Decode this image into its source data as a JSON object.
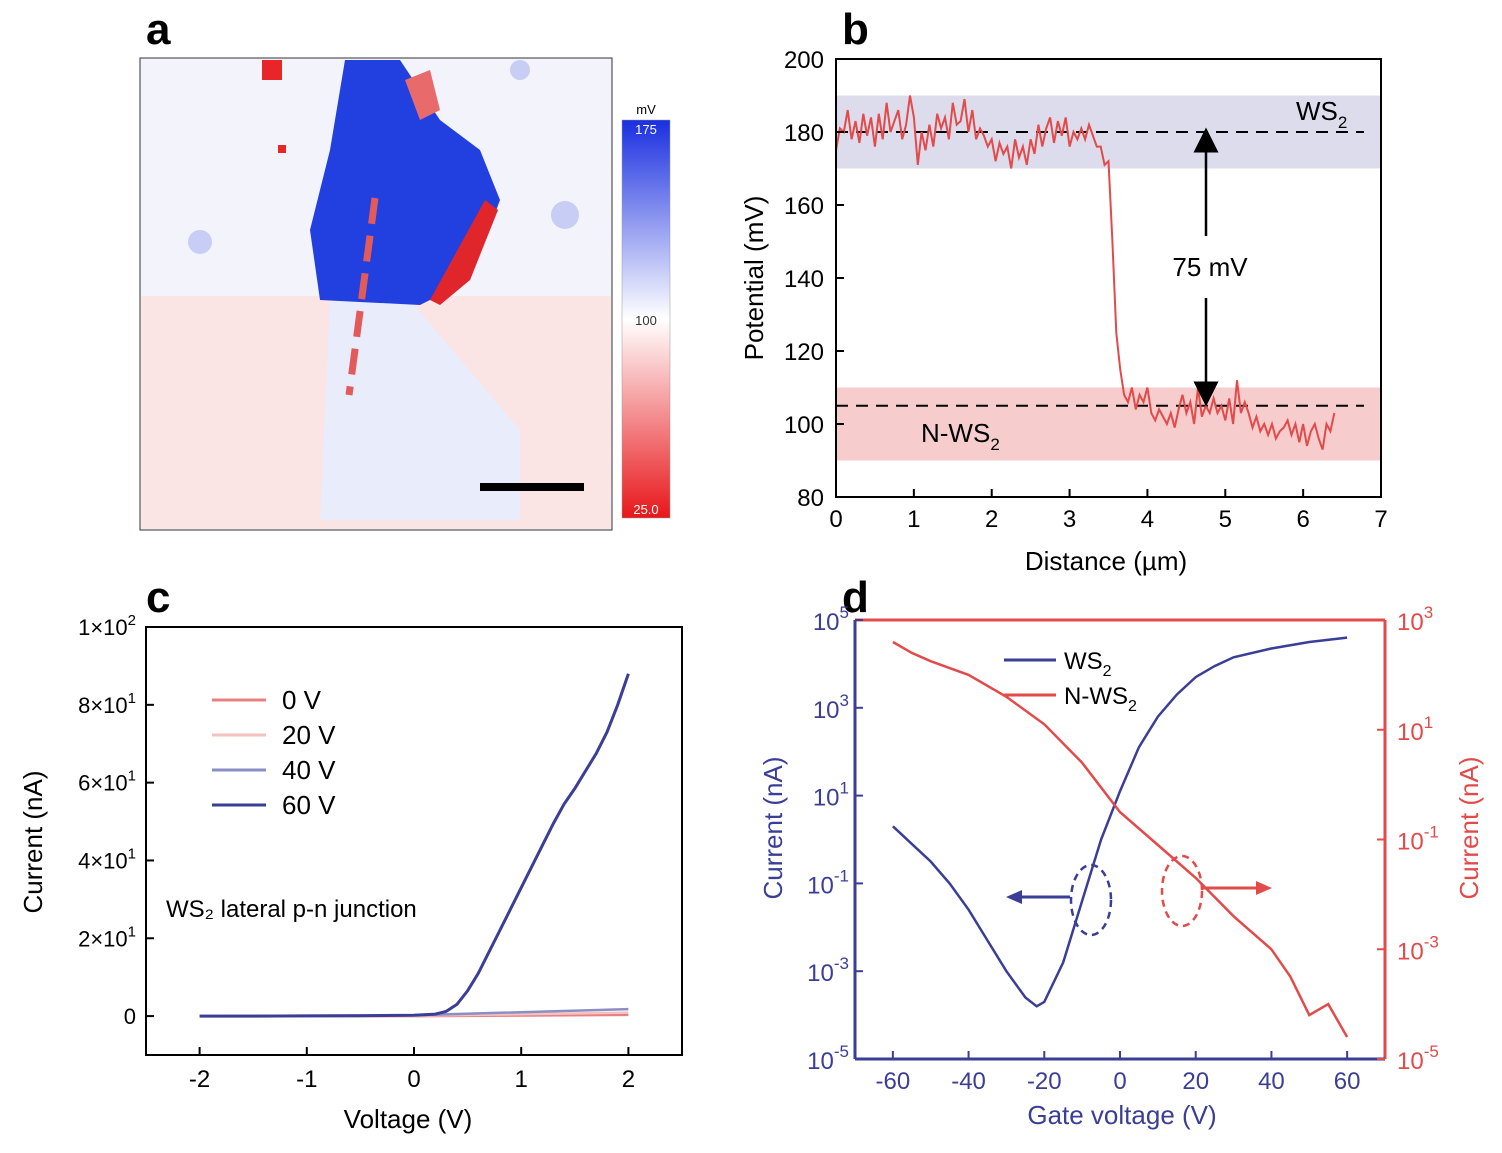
{
  "figure": {
    "panel_letters": [
      "a",
      "b",
      "c",
      "d"
    ]
  },
  "colors": {
    "blue": "#3a3e96",
    "red": "#e34a4a",
    "map_blue": "#1f3fe0",
    "map_red": "#e8262a",
    "band_blue": "#dcdcec",
    "band_red": "#f6cccc"
  },
  "chart_data": [
    {
      "panel": "a",
      "type": "heatmap",
      "colorbar": {
        "unit": "mV",
        "max_label": "175",
        "mid_label": "100",
        "min_label": "25.0"
      },
      "description_icons": [
        "scale-bar",
        "line-profile"
      ]
    },
    {
      "panel": "b",
      "type": "line",
      "xlabel": "Distance (µm)",
      "ylabel": "Potential (mV)",
      "xlim": [
        0,
        7
      ],
      "ylim": [
        80,
        200
      ],
      "xticks": [
        "0",
        "1",
        "2",
        "3",
        "4",
        "5",
        "6",
        "7"
      ],
      "yticks": [
        "80",
        "100",
        "120",
        "140",
        "160",
        "180",
        "200"
      ],
      "bands": [
        {
          "label": "WS",
          "sub": "2",
          "y0": 170,
          "y1": 190
        },
        {
          "label": "N-WS",
          "sub": "2",
          "y0": 90,
          "y1": 110
        }
      ],
      "reference_lines": [
        180,
        105
      ],
      "annotation": "75 mV",
      "series": [
        {
          "x": [
            0.0,
            0.05,
            0.1,
            0.15,
            0.2,
            0.25,
            0.3,
            0.35,
            0.4,
            0.45,
            0.5,
            0.55,
            0.6,
            0.65,
            0.7,
            0.75,
            0.8,
            0.85,
            0.9,
            0.95,
            1.0,
            1.05,
            1.1,
            1.15,
            1.2,
            1.25,
            1.3,
            1.35,
            1.4,
            1.45,
            1.5,
            1.55,
            1.6,
            1.65,
            1.7,
            1.75,
            1.8,
            1.85,
            1.9,
            1.95,
            2.0,
            2.05,
            2.1,
            2.15,
            2.2,
            2.25,
            2.3,
            2.35,
            2.4,
            2.45,
            2.5,
            2.55,
            2.6,
            2.65,
            2.7,
            2.75,
            2.8,
            2.85,
            2.9,
            2.95,
            3.0,
            3.05,
            3.1,
            3.15,
            3.2,
            3.25,
            3.3,
            3.35,
            3.4,
            3.45,
            3.5,
            3.55,
            3.6,
            3.65,
            3.7,
            3.75,
            3.8,
            3.85,
            3.9,
            3.95,
            4.0,
            4.05,
            4.1,
            4.15,
            4.2,
            4.25,
            4.3,
            4.35,
            4.4,
            4.45,
            4.5,
            4.55,
            4.6,
            4.65,
            4.7,
            4.75,
            4.8,
            4.85,
            4.9,
            4.95,
            5.0,
            5.05,
            5.1,
            5.15,
            5.2,
            5.25,
            5.3,
            5.35,
            5.4,
            5.45,
            5.5,
            5.55,
            5.6,
            5.65,
            5.7,
            5.75,
            5.8,
            5.85,
            5.9,
            5.95,
            6.0,
            6.05,
            6.1,
            6.15,
            6.2,
            6.25,
            6.3,
            6.35,
            6.4
          ],
          "y": [
            175,
            181,
            180,
            186,
            178,
            183,
            177,
            185,
            179,
            184,
            176,
            185,
            178,
            188,
            180,
            183,
            186,
            178,
            182,
            190,
            184,
            171,
            180,
            175,
            182,
            176,
            185,
            181,
            184,
            178,
            188,
            182,
            183,
            189,
            180,
            186,
            178,
            181,
            179,
            176,
            178,
            172,
            177,
            174,
            176,
            170,
            178,
            173,
            176,
            171,
            178,
            174,
            182,
            176,
            181,
            184,
            177,
            183,
            179,
            184,
            176,
            180,
            178,
            181,
            178,
            182,
            179,
            176,
            176,
            171,
            172,
            150,
            125,
            115,
            108,
            106,
            110,
            104,
            108,
            106,
            110,
            103,
            101,
            104,
            102,
            100,
            103,
            99,
            104,
            108,
            103,
            106,
            100,
            110,
            102,
            105,
            103,
            107,
            103,
            105,
            101,
            107,
            100,
            112,
            103,
            106,
            103,
            99,
            102,
            98,
            100,
            97,
            100,
            96,
            98,
            99,
            101,
            97,
            100,
            95,
            100,
            94,
            98,
            100,
            96,
            93,
            100,
            98,
            103
          ]
        }
      ]
    },
    {
      "panel": "c",
      "type": "line",
      "xlabel": "Voltage (V)",
      "ylabel": "Current (nA)",
      "xlim": [
        -2.5,
        2.5
      ],
      "ylim": [
        -10,
        100
      ],
      "xticks": [
        "-2",
        "-1",
        "0",
        "1",
        "2"
      ],
      "yticks": [
        "0",
        "2×10",
        "4×10",
        "6×10",
        "8×10",
        "1×10"
      ],
      "ytick_exponents": [
        "",
        "1",
        "1",
        "1",
        "1",
        "2"
      ],
      "annotation": "WS₂  lateral p-n junction",
      "legend_position": "upper-left",
      "series": [
        {
          "name": "0 V",
          "x": [
            -2,
            0,
            2
          ],
          "y": [
            0,
            0,
            0.3
          ]
        },
        {
          "name": "20 V",
          "x": [
            -2,
            0,
            2
          ],
          "y": [
            0,
            0.1,
            0.9
          ]
        },
        {
          "name": "40 V",
          "x": [
            -2,
            0,
            2
          ],
          "y": [
            0,
            0.2,
            1.8
          ]
        },
        {
          "name": "60 V",
          "x": [
            -2,
            -1.5,
            -1,
            -0.5,
            0,
            0.2,
            0.3,
            0.4,
            0.5,
            0.6,
            0.7,
            0.8,
            0.9,
            1.0,
            1.1,
            1.2,
            1.3,
            1.4,
            1.5,
            1.6,
            1.7,
            1.8,
            1.9,
            2.0
          ],
          "y": [
            0,
            0,
            0.05,
            0.1,
            0.2,
            0.5,
            1.2,
            3,
            6.5,
            11,
            16.5,
            22,
            27.5,
            33,
            38.5,
            44,
            49.5,
            54.5,
            58.5,
            63,
            67.5,
            73,
            80,
            88
          ]
        }
      ]
    },
    {
      "panel": "d",
      "type": "line",
      "xlabel": "Gate voltage (V)",
      "ylabel_left": "Current (nA)",
      "ylabel_right": "Current (nA)",
      "xlim": [
        -70,
        70
      ],
      "ylim_left_log10": [
        -5,
        5
      ],
      "ylim_right_log10": [
        -5,
        3
      ],
      "xticks": [
        "-60",
        "-40",
        "-20",
        "0",
        "20",
        "40",
        "60"
      ],
      "yticks_left_base": "10",
      "yticks_left_exp": [
        "-5",
        "-3",
        "-1",
        "1",
        "3",
        "5"
      ],
      "yticks_right_base": "10",
      "yticks_right_exp": [
        "-5",
        "-3",
        "-1",
        "1",
        "3"
      ],
      "legend_position": "top-center",
      "series": [
        {
          "name": "WS",
          "sub": "2",
          "axis": "left",
          "x": [
            -60,
            -55,
            -50,
            -45,
            -40,
            -35,
            -30,
            -25,
            -22,
            -20,
            -15,
            -10,
            -5,
            0,
            5,
            10,
            15,
            20,
            25,
            30,
            40,
            50,
            60
          ],
          "log10_y": [
            0.3,
            -0.1,
            -0.5,
            -1.0,
            -1.6,
            -2.3,
            -3.0,
            -3.6,
            -3.8,
            -3.7,
            -2.8,
            -1.4,
            0.0,
            1.1,
            2.1,
            2.8,
            3.3,
            3.7,
            3.95,
            4.15,
            4.35,
            4.5,
            4.6
          ]
        },
        {
          "name": "N-WS",
          "sub": "2",
          "axis": "right",
          "x": [
            -60,
            -55,
            -50,
            -40,
            -30,
            -20,
            -10,
            0,
            10,
            20,
            30,
            35,
            40,
            45,
            50,
            55,
            60
          ],
          "log10_y": [
            2.6,
            2.4,
            2.25,
            2.0,
            1.6,
            1.1,
            0.4,
            -0.5,
            -1.1,
            -1.7,
            -2.4,
            -2.7,
            -3.0,
            -3.5,
            -4.2,
            -4.0,
            -4.6
          ]
        }
      ],
      "arrow_annotations": [
        "left",
        "right"
      ]
    }
  ]
}
